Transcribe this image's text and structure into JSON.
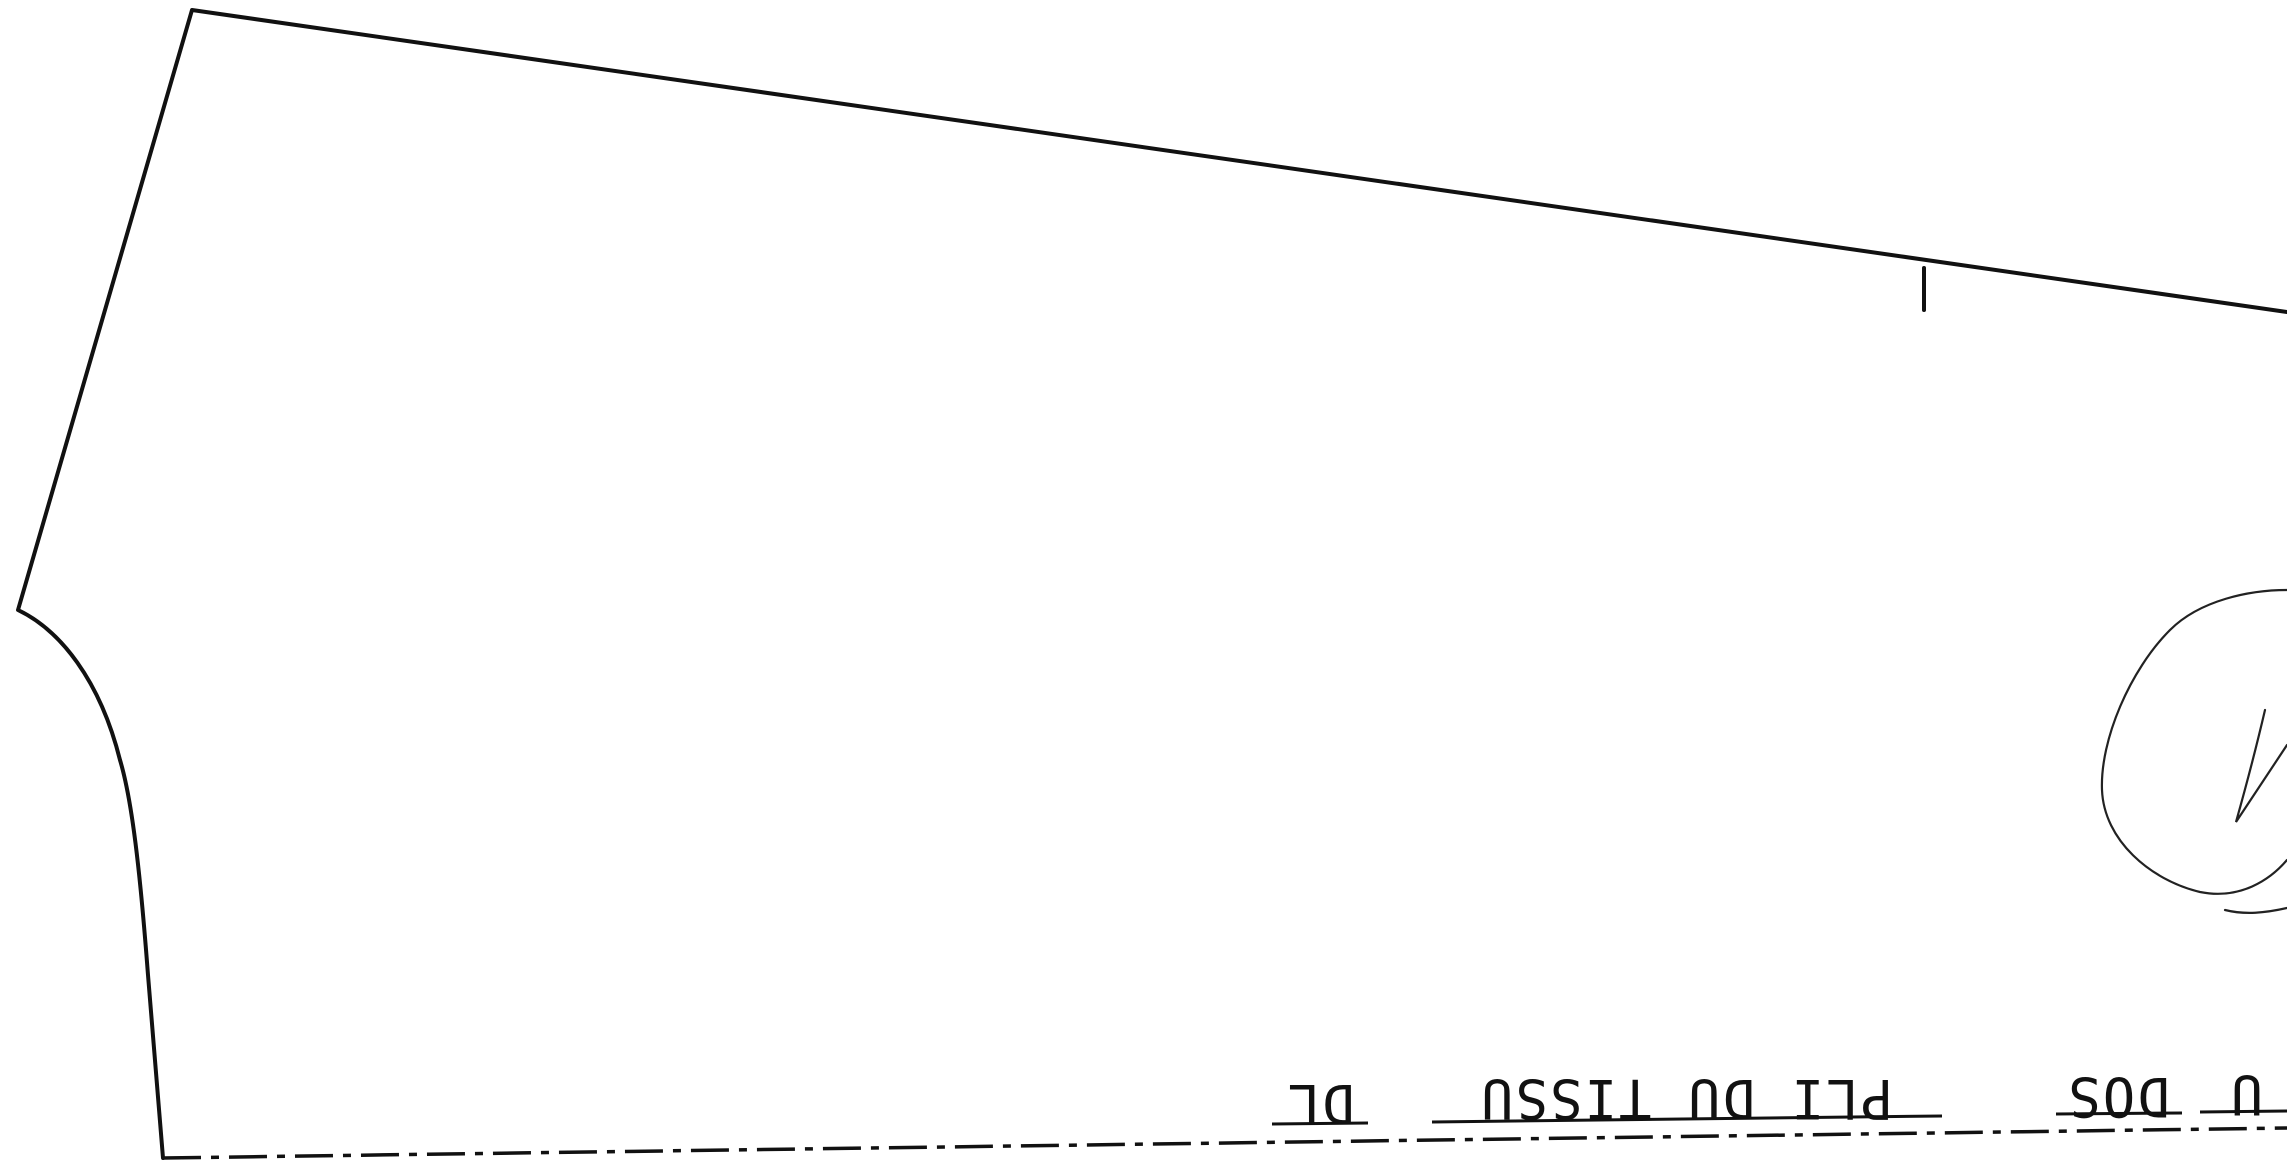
{
  "diagram": {
    "type": "sewing-pattern-piece",
    "labels": {
      "back_center": "DOS",
      "fold": "PLI DU TISSU",
      "grain_mark": "DL",
      "cut_off_prefix": "U"
    },
    "handwritten_mark": "V",
    "line_color": "#111111",
    "background_color": "#ffffff"
  }
}
